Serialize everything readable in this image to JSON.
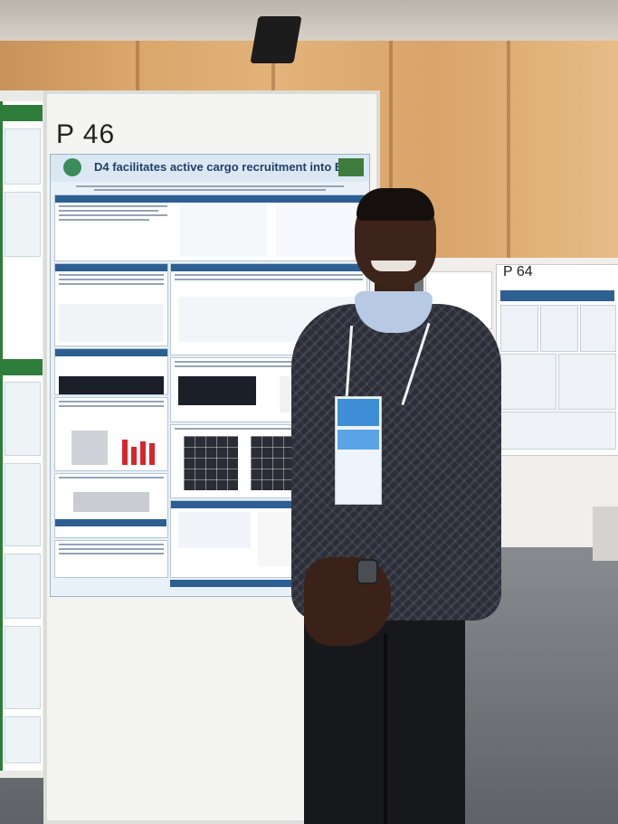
{
  "scene": {
    "poster_number_main": "P 46",
    "poster_number_right": "P 64",
    "poster_title": "D4 facilitates active cargo recruitment into EV",
    "colors": {
      "wall": "#d9a56a",
      "carpet": "#6f7478",
      "poster_blue": "#2d5f92",
      "left_poster_green": "#2f7d3a",
      "sweater": "#2b2e38",
      "shirt": "#b8c9e3"
    }
  }
}
